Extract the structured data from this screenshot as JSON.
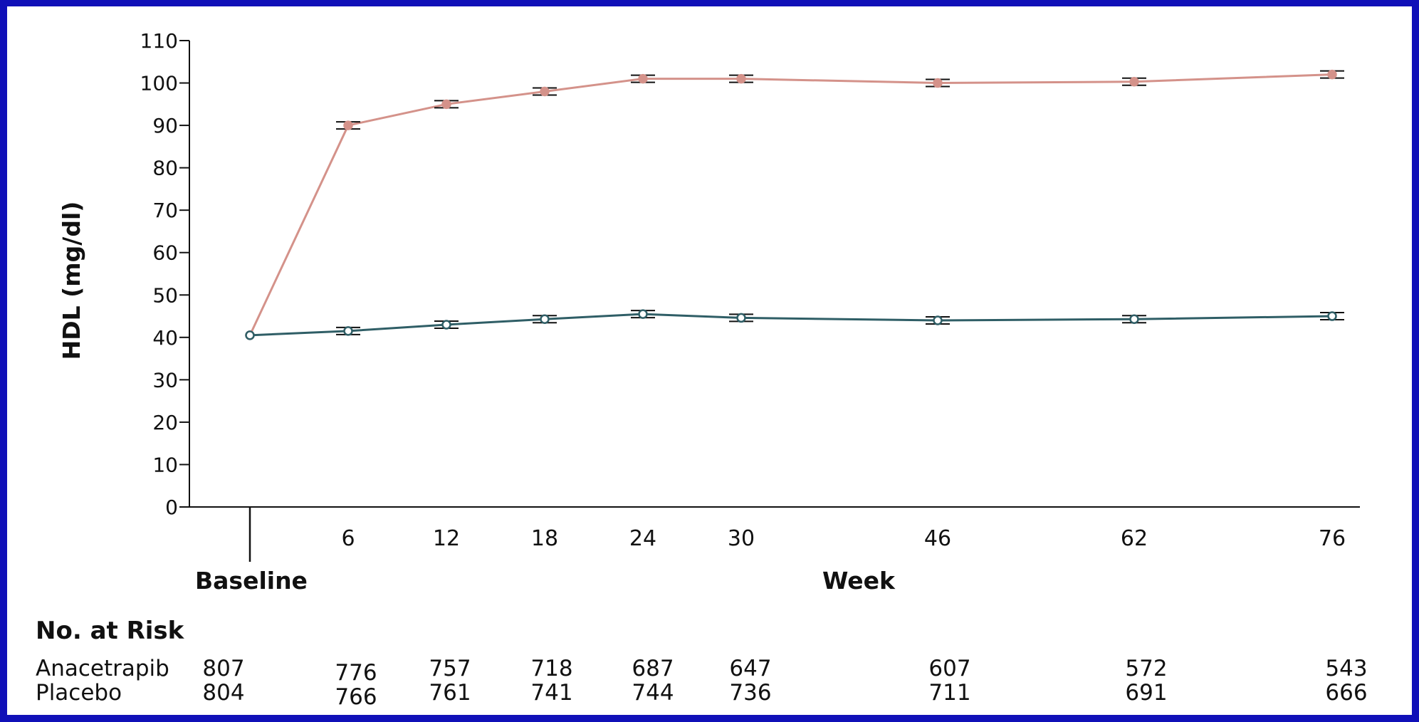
{
  "chart_data": {
    "type": "line",
    "ylabel": "HDL (mg/dl)",
    "xlabel": "Week",
    "ylim": [
      0,
      110
    ],
    "yticks": [
      0,
      10,
      20,
      30,
      40,
      50,
      60,
      70,
      80,
      90,
      100,
      110
    ],
    "x": [
      0,
      6,
      12,
      18,
      24,
      30,
      46,
      62,
      76
    ],
    "xtick_labels": [
      "Baseline",
      "6",
      "12",
      "18",
      "24",
      "30",
      "46",
      "62",
      "76"
    ],
    "grid": false,
    "colors": {
      "anacetrapib": "#D4928A",
      "placebo": "#2F5E66"
    },
    "series": [
      {
        "name": "Anacetrapib",
        "values": [
          40.5,
          90,
          95,
          98,
          101,
          101,
          100,
          100.3,
          102
        ]
      },
      {
        "name": "Placebo",
        "values": [
          40.5,
          41.5,
          43,
          44.3,
          45.5,
          44.6,
          44,
          44.3,
          45
        ]
      }
    ],
    "risk_table": {
      "title": "No. at Risk",
      "rows": [
        {
          "label": "Anacetrapib",
          "values": [
            "807",
            "776",
            "757",
            "718",
            "687",
            "647",
            "607",
            "572",
            "543"
          ]
        },
        {
          "label": "Placebo",
          "values": [
            "804",
            "766",
            "761",
            "741",
            "744",
            "736",
            "711",
            "691",
            "666"
          ]
        }
      ]
    }
  }
}
